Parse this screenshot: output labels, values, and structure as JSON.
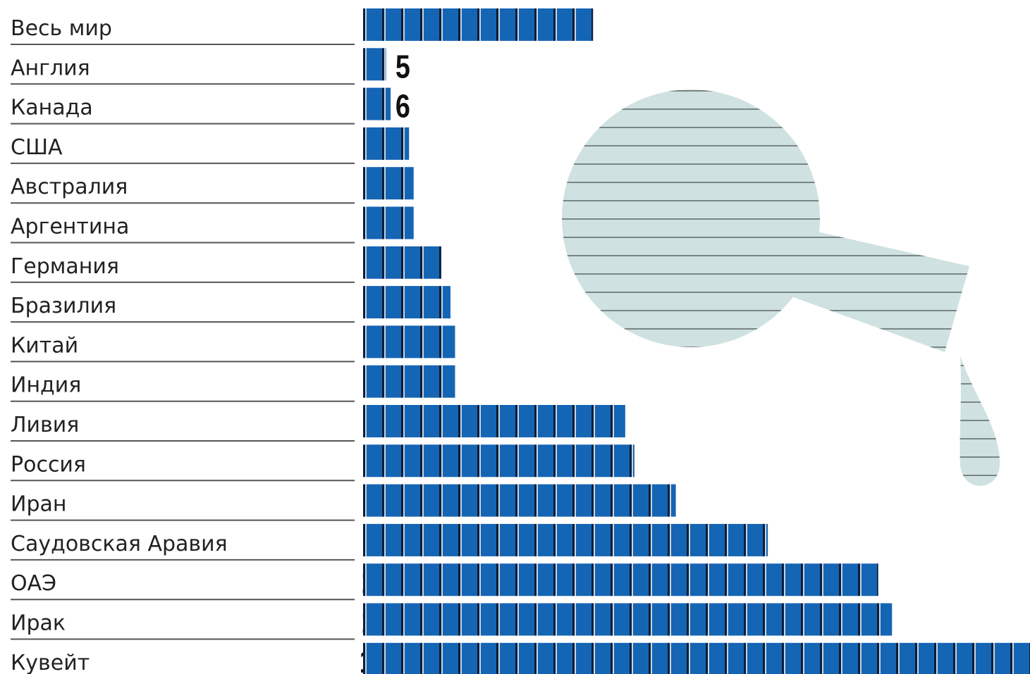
{
  "chart_data": {
    "type": "bar",
    "orientation": "horizontal",
    "categories": [
      "Весь мир",
      "Англия",
      "Канада",
      "США",
      "Австралия",
      "Аргентина",
      "Германия",
      "Бразилия",
      "Китай",
      "Индия",
      "Ливия",
      "Россия",
      "Иран",
      "Саудовская Аравия",
      "ОАЭ",
      "Ирак",
      "Кувейт"
    ],
    "values": [
      50,
      5,
      6,
      10,
      11,
      11,
      17,
      19,
      20,
      20,
      57,
      59,
      68,
      88,
      112,
      115,
      145
    ],
    "color": "#1565b5",
    "xlim": [
      0,
      145
    ]
  }
}
